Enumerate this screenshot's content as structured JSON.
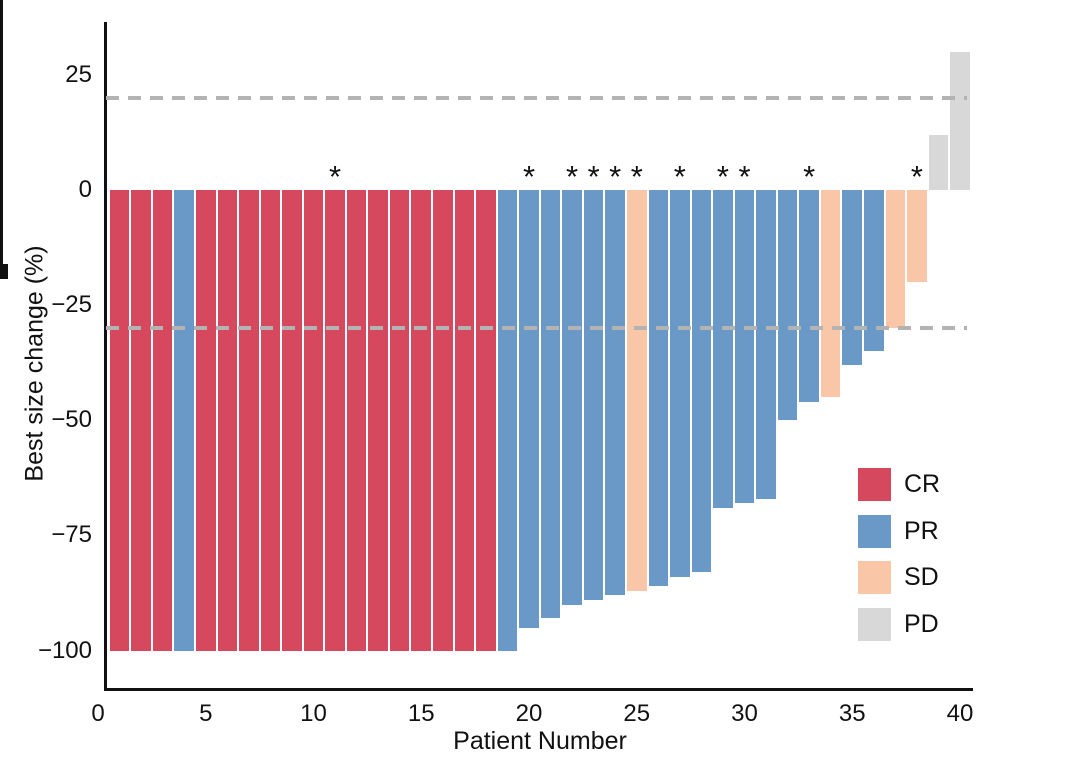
{
  "figure": {
    "background": "#ffffff",
    "text_color": "#111111"
  },
  "chart_data": {
    "type": "bar",
    "subtype": "waterfall",
    "title": "",
    "xlabel": "Patient Number",
    "ylabel": "Best size change (%)",
    "ylim": [
      -106,
      37
    ],
    "xlim": [
      0,
      40.6
    ],
    "grid": false,
    "legend_position": "inside-right",
    "annotation_marker": "*",
    "y_axis_ticks": {
      "values": [
        25,
        0,
        -25,
        -50,
        -75,
        -100
      ],
      "labels": [
        "25",
        "0",
        "−25",
        "−50",
        "−75",
        "−100"
      ]
    },
    "x_axis_ticks": {
      "major_values": [
        0,
        5,
        10,
        15,
        20,
        25,
        30,
        35,
        40
      ],
      "major_labels": [
        "0",
        "5",
        "10",
        "15",
        "20",
        "25",
        "30",
        "35",
        "40"
      ],
      "minor_tick_every": 1
    },
    "reference_lines": [
      {
        "value": 20,
        "style": "dashed",
        "color": "#B3B3B3"
      },
      {
        "value": -30,
        "style": "dashed",
        "color": "#B3B3B3"
      }
    ],
    "colors": {
      "CR": "#D6485E",
      "PR": "#6A99C7",
      "SD": "#F9C6A8",
      "PD": "#D8D8D8"
    },
    "legend": [
      {
        "label": "CR",
        "color": "#D6485E"
      },
      {
        "label": "PR",
        "color": "#6A99C7"
      },
      {
        "label": "SD",
        "color": "#F9C6A8"
      },
      {
        "label": "PD",
        "color": "#D8D8D8"
      }
    ],
    "patients": [
      {
        "patient": 1,
        "value": -100,
        "response": "CR",
        "starred": false
      },
      {
        "patient": 2,
        "value": -100,
        "response": "CR",
        "starred": false
      },
      {
        "patient": 3,
        "value": -100,
        "response": "CR",
        "starred": false
      },
      {
        "patient": 4,
        "value": -100,
        "response": "PR",
        "starred": false
      },
      {
        "patient": 5,
        "value": -100,
        "response": "CR",
        "starred": false
      },
      {
        "patient": 6,
        "value": -100,
        "response": "CR",
        "starred": false
      },
      {
        "patient": 7,
        "value": -100,
        "response": "CR",
        "starred": false
      },
      {
        "patient": 8,
        "value": -100,
        "response": "CR",
        "starred": false
      },
      {
        "patient": 9,
        "value": -100,
        "response": "CR",
        "starred": false
      },
      {
        "patient": 10,
        "value": -100,
        "response": "CR",
        "starred": false
      },
      {
        "patient": 11,
        "value": -100,
        "response": "CR",
        "starred": true
      },
      {
        "patient": 12,
        "value": -100,
        "response": "CR",
        "starred": false
      },
      {
        "patient": 13,
        "value": -100,
        "response": "CR",
        "starred": false
      },
      {
        "patient": 14,
        "value": -100,
        "response": "CR",
        "starred": false
      },
      {
        "patient": 15,
        "value": -100,
        "response": "CR",
        "starred": false
      },
      {
        "patient": 16,
        "value": -100,
        "response": "CR",
        "starred": false
      },
      {
        "patient": 17,
        "value": -100,
        "response": "CR",
        "starred": false
      },
      {
        "patient": 18,
        "value": -100,
        "response": "CR",
        "starred": false
      },
      {
        "patient": 19,
        "value": -100,
        "response": "PR",
        "starred": false
      },
      {
        "patient": 20,
        "value": -95,
        "response": "PR",
        "starred": true
      },
      {
        "patient": 21,
        "value": -93,
        "response": "PR",
        "starred": false
      },
      {
        "patient": 22,
        "value": -90,
        "response": "PR",
        "starred": true
      },
      {
        "patient": 23,
        "value": -89,
        "response": "PR",
        "starred": true
      },
      {
        "patient": 24,
        "value": -88,
        "response": "PR",
        "starred": true
      },
      {
        "patient": 25,
        "value": -87,
        "response": "SD",
        "starred": true
      },
      {
        "patient": 26,
        "value": -86,
        "response": "PR",
        "starred": false
      },
      {
        "patient": 27,
        "value": -84,
        "response": "PR",
        "starred": true
      },
      {
        "patient": 28,
        "value": -83,
        "response": "PR",
        "starred": false
      },
      {
        "patient": 29,
        "value": -69,
        "response": "PR",
        "starred": true
      },
      {
        "patient": 30,
        "value": -68,
        "response": "PR",
        "starred": true
      },
      {
        "patient": 31,
        "value": -67,
        "response": "PR",
        "starred": false
      },
      {
        "patient": 32,
        "value": -50,
        "response": "PR",
        "starred": false
      },
      {
        "patient": 33,
        "value": -46,
        "response": "PR",
        "starred": true
      },
      {
        "patient": 34,
        "value": -45,
        "response": "SD",
        "starred": false
      },
      {
        "patient": 35,
        "value": -38,
        "response": "PR",
        "starred": false
      },
      {
        "patient": 36,
        "value": -35,
        "response": "PR",
        "starred": false
      },
      {
        "patient": 37,
        "value": -30,
        "response": "SD",
        "starred": false
      },
      {
        "patient": 38,
        "value": -20,
        "response": "SD",
        "starred": true
      },
      {
        "patient": 39,
        "value": 12,
        "response": "PD",
        "starred": false
      },
      {
        "patient": 40,
        "value": 30,
        "response": "PD",
        "starred": false
      }
    ]
  }
}
